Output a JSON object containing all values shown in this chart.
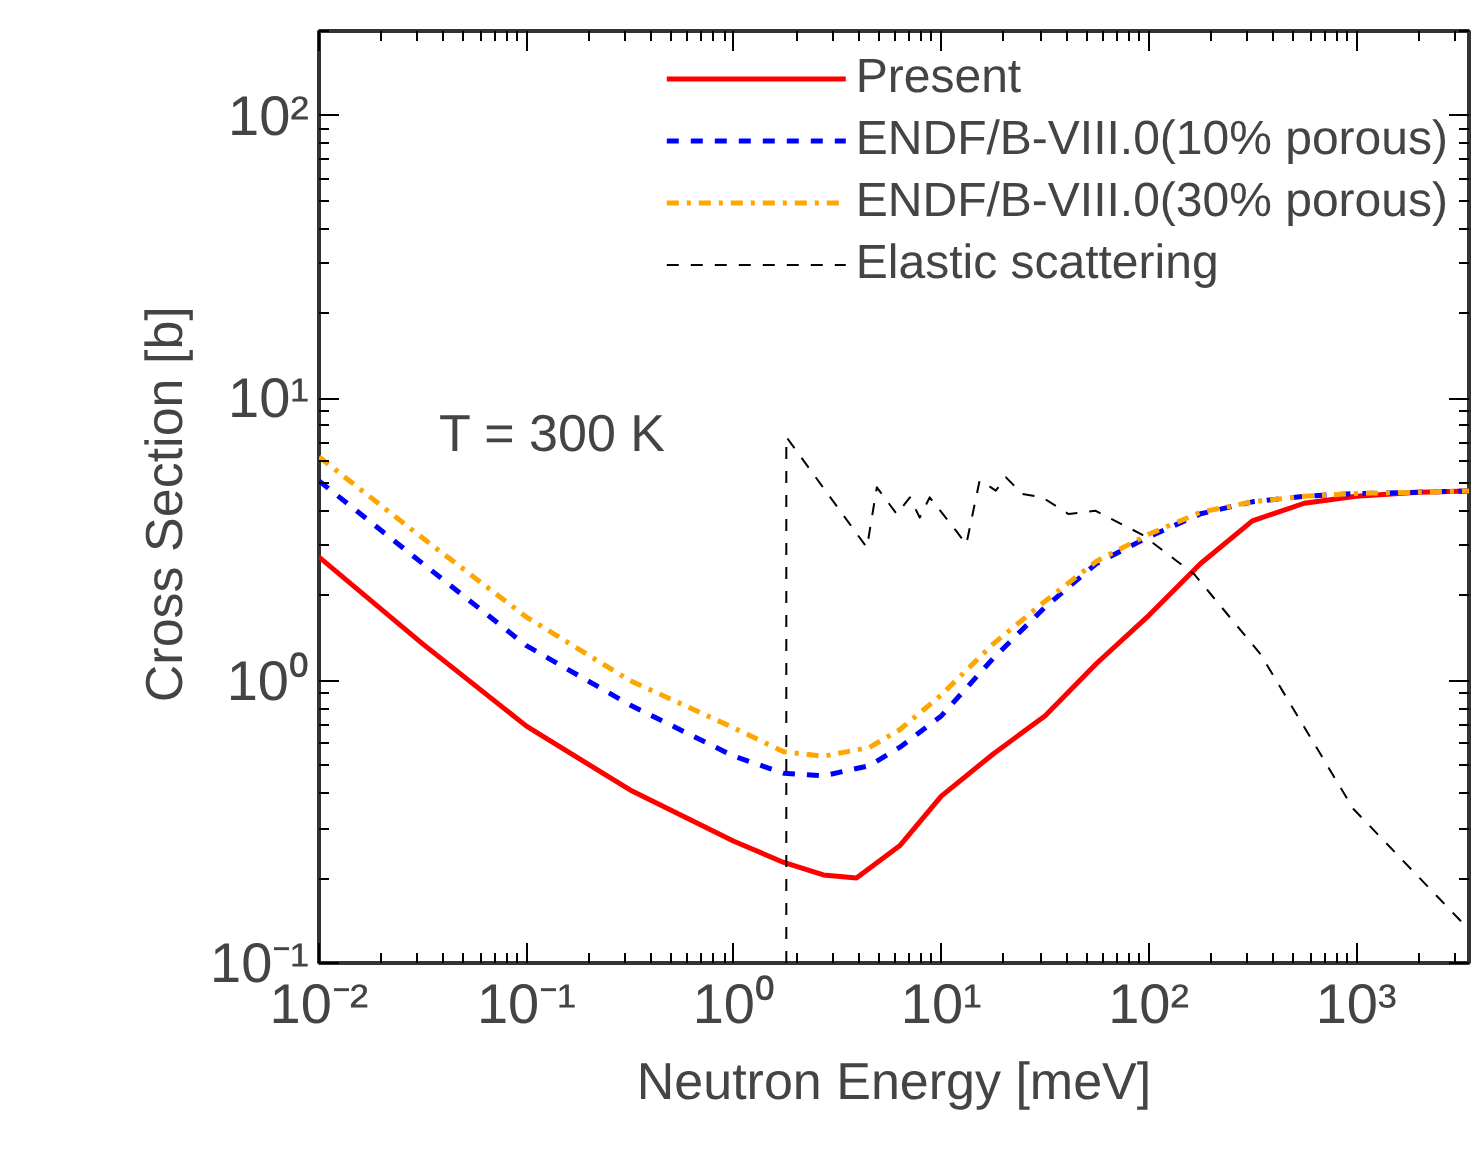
{
  "chart_data": {
    "type": "line",
    "xlabel": "Neutron Energy [meV]",
    "ylabel": "Cross Section  [b]",
    "log": "xy",
    "xlim": [
      0.01,
      3500
    ],
    "ylim": [
      0.1,
      200
    ],
    "xticks": [
      {
        "value": 0.01,
        "label": "10⁻²"
      },
      {
        "value": 0.1,
        "label": "10⁻¹"
      },
      {
        "value": 1,
        "label": "10⁰"
      },
      {
        "value": 10,
        "label": "10¹"
      },
      {
        "value": 100,
        "label": "10²"
      },
      {
        "value": 1000,
        "label": "10³"
      }
    ],
    "yticks": [
      {
        "value": 0.1,
        "label": "10⁻¹"
      },
      {
        "value": 1,
        "label": "10⁰"
      },
      {
        "value": 10,
        "label": "10¹"
      },
      {
        "value": 100,
        "label": "10²"
      }
    ],
    "grid": false,
    "legend": "top right",
    "marker": "none",
    "annotations": [
      "T = 300 K"
    ],
    "series": [
      {
        "name": "Present",
        "color": "#ff0000",
        "line_style": "solid",
        "x": [
          0.01,
          0.0316,
          0.1,
          0.316,
          1,
          1.74,
          2.7,
          3.9,
          6.3,
          10,
          17.8,
          31.6,
          56,
          100,
          178,
          316,
          562,
          1000,
          2000,
          3500
        ],
        "values": [
          2.74,
          1.35,
          0.69,
          0.41,
          0.27,
          0.227,
          0.205,
          0.2,
          0.26,
          0.39,
          0.55,
          0.75,
          1.15,
          1.7,
          2.6,
          3.68,
          4.25,
          4.5,
          4.65,
          4.7
        ]
      },
      {
        "name": "ENDF/B-VIII.0(10% porous)",
        "color": "#0000ff",
        "line_style": "dashed",
        "x": [
          0.01,
          0.0316,
          0.1,
          0.316,
          1,
          1.74,
          2.7,
          4.5,
          6.3,
          10,
          17.8,
          31.6,
          56,
          100,
          178,
          316,
          562,
          1000,
          2000,
          3500
        ],
        "values": [
          5.1,
          2.6,
          1.33,
          0.82,
          0.54,
          0.47,
          0.46,
          0.5,
          0.58,
          0.75,
          1.2,
          1.82,
          2.6,
          3.23,
          3.9,
          4.3,
          4.5,
          4.6,
          4.65,
          4.7
        ]
      },
      {
        "name": "ENDF/B-VIII.0(30% porous)",
        "color": "#ffa500",
        "line_style": "dashdot",
        "x": [
          0.01,
          0.0316,
          0.1,
          0.316,
          1,
          1.74,
          2.7,
          4.5,
          6.3,
          10,
          17.8,
          31.6,
          56,
          100,
          178,
          316,
          562,
          1000,
          2000,
          3500
        ],
        "values": [
          6.2,
          3.2,
          1.68,
          1.0,
          0.68,
          0.56,
          0.54,
          0.58,
          0.67,
          0.89,
          1.35,
          1.91,
          2.65,
          3.3,
          3.95,
          4.3,
          4.5,
          4.6,
          4.65,
          4.7
        ]
      },
      {
        "name": "Elastic scattering",
        "color": "#000000",
        "line_style": "dashed",
        "x": [
          1.79,
          1.79,
          4.38,
          4.89,
          6.1,
          7.06,
          7.87,
          8.79,
          11.8,
          13.2,
          15.3,
          16.4,
          18.3,
          20.5,
          24.6,
          30.7,
          41.1,
          55.2,
          92.3,
          166,
          346,
          968,
          3250
        ],
        "values": [
          0.1,
          7.3,
          2.96,
          4.84,
          3.89,
          4.46,
          3.78,
          4.46,
          3.39,
          3.04,
          5.11,
          4.97,
          4.71,
          5.25,
          4.58,
          4.46,
          3.89,
          4.0,
          3.3,
          2.38,
          1.24,
          0.352,
          0.139
        ]
      }
    ]
  }
}
